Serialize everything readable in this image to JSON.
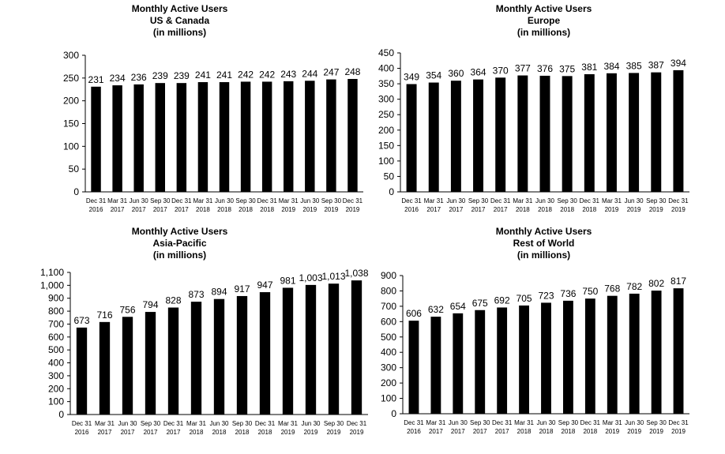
{
  "chart_data": [
    {
      "type": "bar",
      "title": "Monthly Active Users",
      "subtitle": "US & Canada",
      "unit_label": "(in millions)",
      "categories": [
        [
          "Dec 31",
          "2016"
        ],
        [
          "Mar 31",
          "2017"
        ],
        [
          "Jun 30",
          "2017"
        ],
        [
          "Sep 30",
          "2017"
        ],
        [
          "Dec 31",
          "2017"
        ],
        [
          "Mar 31",
          "2018"
        ],
        [
          "Jun 30",
          "2018"
        ],
        [
          "Sep 30",
          "2018"
        ],
        [
          "Dec 31",
          "2018"
        ],
        [
          "Mar 31",
          "2019"
        ],
        [
          "Jun 30",
          "2019"
        ],
        [
          "Sep 30",
          "2019"
        ],
        [
          "Dec 31",
          "2019"
        ]
      ],
      "values": [
        231,
        234,
        236,
        239,
        239,
        241,
        241,
        242,
        242,
        243,
        244,
        247,
        248
      ],
      "value_labels": [
        "231",
        "234",
        "236",
        "239",
        "239",
        "241",
        "241",
        "242",
        "242",
        "243",
        "244",
        "247",
        "248"
      ],
      "yticks": [
        0,
        50,
        100,
        150,
        200,
        250,
        300
      ],
      "ytick_labels": [
        "0",
        "50",
        "100",
        "150",
        "200",
        "250",
        "300"
      ],
      "ylim": [
        0,
        300
      ],
      "xlabel": "",
      "ylabel": "",
      "grid": false,
      "bar_color": "#000000"
    },
    {
      "type": "bar",
      "title": "Monthly Active Users",
      "subtitle": "Europe",
      "unit_label": "(in millions)",
      "categories": [
        [
          "Dec 31",
          "2016"
        ],
        [
          "Mar 31",
          "2017"
        ],
        [
          "Jun 30",
          "2017"
        ],
        [
          "Sep 30",
          "2017"
        ],
        [
          "Dec 31",
          "2017"
        ],
        [
          "Mar 31",
          "2018"
        ],
        [
          "Jun 30",
          "2018"
        ],
        [
          "Sep 30",
          "2018"
        ],
        [
          "Dec 31",
          "2018"
        ],
        [
          "Mar 31",
          "2019"
        ],
        [
          "Jun 30",
          "2019"
        ],
        [
          "Sep 30",
          "2019"
        ],
        [
          "Dec 31",
          "2019"
        ]
      ],
      "values": [
        349,
        354,
        360,
        364,
        370,
        377,
        376,
        375,
        381,
        384,
        385,
        387,
        394
      ],
      "value_labels": [
        "349",
        "354",
        "360",
        "364",
        "370",
        "377",
        "376",
        "375",
        "381",
        "384",
        "385",
        "387",
        "394"
      ],
      "yticks": [
        0,
        50,
        100,
        150,
        200,
        250,
        300,
        350,
        400,
        450
      ],
      "ytick_labels": [
        "0",
        "50",
        "100",
        "150",
        "200",
        "250",
        "300",
        "350",
        "400",
        "450"
      ],
      "ylim": [
        0,
        450
      ],
      "xlabel": "",
      "ylabel": "",
      "grid": false,
      "bar_color": "#000000"
    },
    {
      "type": "bar",
      "title": "Monthly Active Users",
      "subtitle": "Asia-Pacific",
      "unit_label": "(in millions)",
      "categories": [
        [
          "Dec 31",
          "2016"
        ],
        [
          "Mar 31",
          "2017"
        ],
        [
          "Jun 30",
          "2017"
        ],
        [
          "Sep 30",
          "2017"
        ],
        [
          "Dec 31",
          "2017"
        ],
        [
          "Mar 31",
          "2018"
        ],
        [
          "Jun 30",
          "2018"
        ],
        [
          "Sep 30",
          "2018"
        ],
        [
          "Dec 31",
          "2018"
        ],
        [
          "Mar 31",
          "2019"
        ],
        [
          "Jun 30",
          "2019"
        ],
        [
          "Sep 30",
          "2019"
        ],
        [
          "Dec 31",
          "2019"
        ]
      ],
      "values": [
        673,
        716,
        756,
        794,
        828,
        873,
        894,
        917,
        947,
        981,
        1003,
        1013,
        1038
      ],
      "value_labels": [
        "673",
        "716",
        "756",
        "794",
        "828",
        "873",
        "894",
        "917",
        "947",
        "981",
        "1,003",
        "1,013",
        "1,038"
      ],
      "yticks": [
        0,
        100,
        200,
        300,
        400,
        500,
        600,
        700,
        800,
        900,
        1000,
        1100
      ],
      "ytick_labels": [
        "0",
        "100",
        "200",
        "300",
        "400",
        "500",
        "600",
        "700",
        "800",
        "900",
        "1,000",
        "1,100"
      ],
      "ylim": [
        0,
        1100
      ],
      "xlabel": "",
      "ylabel": "",
      "grid": false,
      "bar_color": "#000000"
    },
    {
      "type": "bar",
      "title": "Monthly Active Users",
      "subtitle": "Rest of World",
      "unit_label": "(in millions)",
      "categories": [
        [
          "Dec 31",
          "2016"
        ],
        [
          "Mar 31",
          "2017"
        ],
        [
          "Jun 30",
          "2017"
        ],
        [
          "Sep 30",
          "2017"
        ],
        [
          "Dec 31",
          "2017"
        ],
        [
          "Mar 31",
          "2018"
        ],
        [
          "Jun 30",
          "2018"
        ],
        [
          "Sep 30",
          "2018"
        ],
        [
          "Dec 31",
          "2018"
        ],
        [
          "Mar 31",
          "2019"
        ],
        [
          "Jun 30",
          "2019"
        ],
        [
          "Sep 30",
          "2019"
        ],
        [
          "Dec 31",
          "2019"
        ]
      ],
      "values": [
        606,
        632,
        654,
        675,
        692,
        705,
        723,
        736,
        750,
        768,
        782,
        802,
        817
      ],
      "value_labels": [
        "606",
        "632",
        "654",
        "675",
        "692",
        "705",
        "723",
        "736",
        "750",
        "768",
        "782",
        "802",
        "817"
      ],
      "yticks": [
        0,
        100,
        200,
        300,
        400,
        500,
        600,
        700,
        800,
        900
      ],
      "ytick_labels": [
        "0",
        "100",
        "200",
        "300",
        "400",
        "500",
        "600",
        "700",
        "800",
        "900"
      ],
      "ylim": [
        0,
        900
      ],
      "xlabel": "",
      "ylabel": "",
      "grid": false,
      "bar_color": "#000000"
    }
  ]
}
